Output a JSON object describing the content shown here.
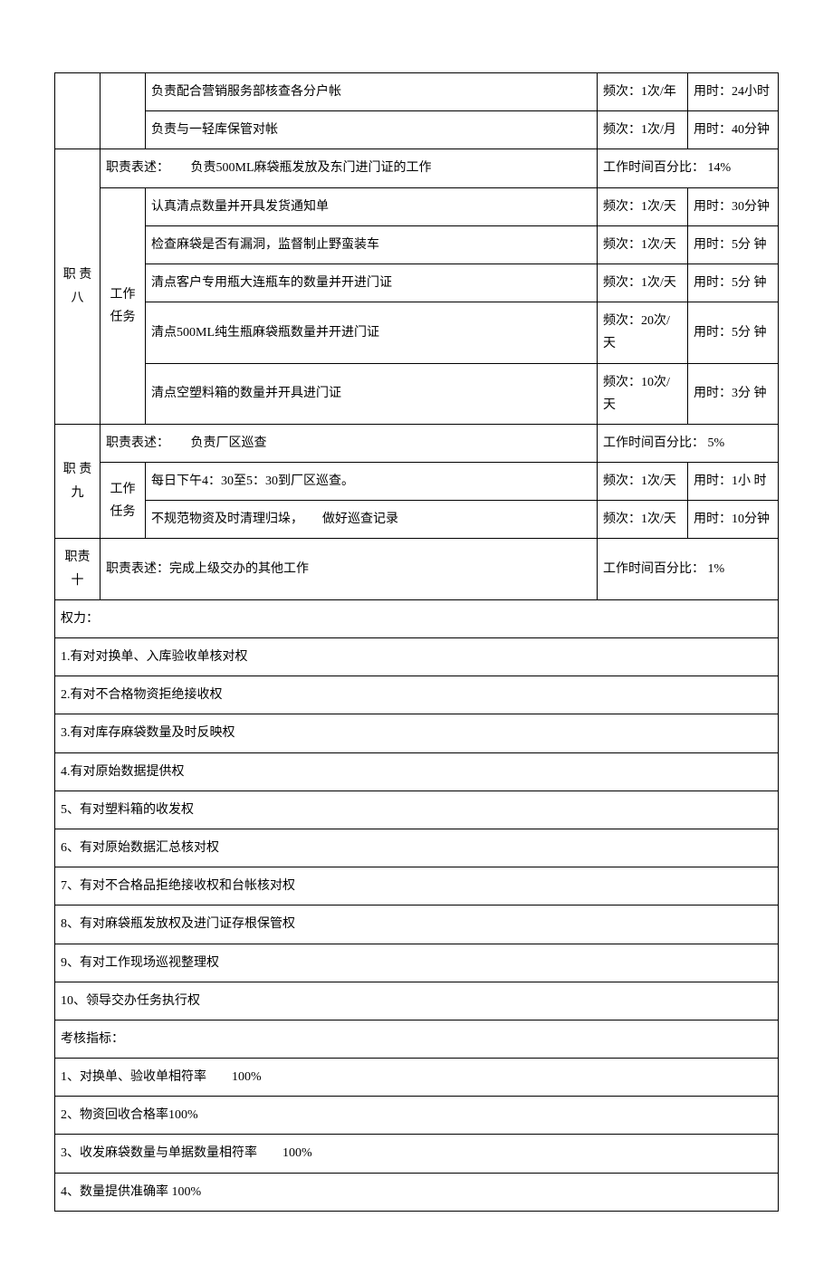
{
  "labels": {
    "desc_prefix": "职责表述：",
    "task": "工作任务",
    "pct_prefix": "工作时间百分比：",
    "freq_prefix": "频次：",
    "time_prefix": "用时："
  },
  "top_tasks": [
    {
      "desc": "负责配合营销服务部核查各分户帐",
      "freq": "1次/年",
      "time": "24小时"
    },
    {
      "desc": "负责与一轻库保管对帐",
      "freq": "1次/月",
      "time": "40分钟"
    }
  ],
  "sections": [
    {
      "id": "职 责八",
      "desc": "负责500ML麻袋瓶发放及东门进门证的工作",
      "pct": "14%",
      "tasks": [
        {
          "desc": "认真清点数量并开具发货通知单",
          "freq": "1次/天",
          "time": "30分钟"
        },
        {
          "desc": "检查麻袋是否有漏洞，监督制止野蛮装车",
          "freq": "1次/天",
          "time": "5分 钟"
        },
        {
          "desc": "清点客户专用瓶大连瓶车的数量并开进门证",
          "freq": "1次/天",
          "time": "5分 钟"
        },
        {
          "desc": "清点500ML纯生瓶麻袋瓶数量并开进门证",
          "freq": "20次/天",
          "time": "5分 钟"
        },
        {
          "desc": "清点空塑料箱的数量并开具进门证",
          "freq": "10次/天",
          "time": "3分 钟"
        }
      ]
    },
    {
      "id": "职 责九",
      "desc": "负责厂区巡查",
      "pct": "5%",
      "tasks": [
        {
          "desc": "每日下午4：30至5：30到厂区巡查。",
          "freq": "1次/天",
          "time": "1小 时"
        },
        {
          "desc": "不规范物资及时清理归垛，　　做好巡查记录",
          "freq": "1次/天",
          "time": "10分钟"
        }
      ]
    }
  ],
  "section_ten": {
    "id": "职责 十",
    "desc": "完成上级交办的其他工作",
    "pct": "1%"
  },
  "rights_header": "权力：",
  "rights": [
    "1.有对对换单、入库验收单核对权",
    "2.有对不合格物资拒绝接收权",
    "3.有对库存麻袋数量及时反映权",
    "4.有对原始数据提供权",
    "5、有对塑料箱的收发权",
    "6、有对原始数据汇总核对权",
    "7、有对不合格品拒绝接收权和台帐核对权",
    "8、有对麻袋瓶发放权及进门证存根保管权",
    "9、有对工作现场巡视整理权",
    "10、领导交办任务执行权"
  ],
  "metrics_header": "考核指标：",
  "metrics": [
    "1、对换单、验收单相符率　　100%",
    "2、物资回收合格率100%",
    "3、收发麻袋数量与单据数量相符率　　100%",
    "4、数量提供准确率 100%"
  ]
}
